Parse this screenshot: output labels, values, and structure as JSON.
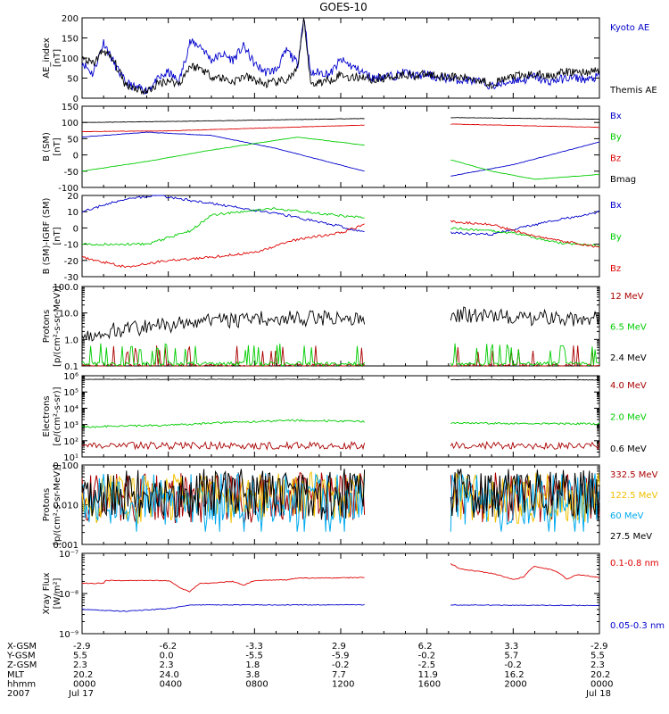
{
  "chart_data": {
    "type": "line",
    "title": "GOES-10",
    "x": {
      "ticks": [
        0,
        4,
        8,
        12,
        16,
        20,
        24
      ],
      "range": [
        0,
        24
      ],
      "data_gap": [
        13.1,
        17.1
      ]
    },
    "footer": {
      "row_labels": [
        "X-GSM",
        "Y-GSM",
        "Z-GSM",
        "MLT",
        "hhmm",
        "2007"
      ],
      "columns": [
        [
          "-2.9",
          "5.5",
          "2.3",
          "20.2",
          "0000",
          "Jul 17"
        ],
        [
          "-6.2",
          "0.0",
          "2.3",
          "24.0",
          "0400",
          ""
        ],
        [
          "-3.3",
          "-5.5",
          "1.8",
          "3.8",
          "0800",
          ""
        ],
        [
          "2.9",
          "-5.9",
          "-0.2",
          "7.7",
          "1200",
          ""
        ],
        [
          "6.2",
          "-0.2",
          "-2.5",
          "11.9",
          "1600",
          ""
        ],
        [
          "3.3",
          "5.7",
          "-0.2",
          "16.2",
          "2000",
          ""
        ],
        [
          "-2.9",
          "5.5",
          "2.3",
          "20.2",
          "0000",
          "Jul 18"
        ]
      ]
    },
    "panels": [
      {
        "ylabel": [
          "AE_index",
          "[nT]"
        ],
        "yscale": "linear",
        "ylim": [
          0,
          200
        ],
        "ticks": [
          0,
          50,
          100,
          150,
          200
        ],
        "series": [
          {
            "name": "Kyoto AE",
            "color": "#0000cc",
            "gap": false,
            "x": [
              0,
              0.5,
              1,
              1.5,
              2,
              2.5,
              3,
              3.5,
              4,
              4.5,
              5,
              5.5,
              6,
              6.5,
              7,
              7.5,
              8,
              8.5,
              9,
              9.5,
              10,
              10.3,
              10.6,
              11,
              11.5,
              12,
              12.5,
              13,
              13.5,
              14,
              14.5,
              15,
              15.5,
              16,
              16.5,
              17,
              17.5,
              18,
              18.5,
              19,
              19.5,
              20,
              20.5,
              21,
              21.5,
              22,
              22.5,
              23,
              23.5,
              24
            ],
            "y": [
              90,
              60,
              140,
              85,
              40,
              25,
              20,
              45,
              65,
              40,
              140,
              130,
              95,
              110,
              95,
              130,
              85,
              65,
              70,
              120,
              85,
              205,
              60,
              65,
              60,
              95,
              80,
              65,
              50,
              55,
              55,
              65,
              55,
              60,
              50,
              50,
              45,
              45,
              40,
              30,
              35,
              45,
              45,
              55,
              40,
              45,
              50,
              50,
              45,
              55
            ]
          },
          {
            "name": "Themis AE",
            "color": "#000000",
            "gap": false,
            "x": [
              0,
              0.5,
              1,
              1.5,
              2,
              2.5,
              3,
              3.5,
              4,
              4.5,
              5,
              5.5,
              6,
              6.5,
              7,
              7.5,
              8,
              8.5,
              9,
              9.5,
              10,
              10.3,
              10.6,
              11,
              11.5,
              12,
              12.5,
              13,
              13.5,
              14,
              14.5,
              15,
              15.5,
              16,
              16.5,
              17,
              17.5,
              18,
              18.5,
              19,
              19.5,
              20,
              20.5,
              21,
              21.5,
              22,
              22.5,
              23,
              23.5,
              24
            ],
            "y": [
              100,
              85,
              120,
              90,
              35,
              25,
              15,
              35,
              45,
              35,
              80,
              75,
              55,
              50,
              40,
              55,
              45,
              35,
              40,
              45,
              70,
              200,
              35,
              40,
              45,
              60,
              50,
              55,
              45,
              50,
              55,
              60,
              55,
              60,
              55,
              55,
              50,
              50,
              45,
              35,
              45,
              55,
              55,
              60,
              55,
              60,
              65,
              65,
              65,
              70
            ]
          }
        ]
      },
      {
        "ylabel": [
          "B (SM)",
          "[nT]"
        ],
        "yscale": "linear",
        "ylim": [
          -100,
          150
        ],
        "ticks": [
          -100,
          -50,
          0,
          50,
          100,
          150
        ],
        "series": [
          {
            "name": "Bx",
            "color": "#0000cc",
            "gap": true,
            "x": [
              0,
              3,
              6,
              9,
              13.1,
              17.1,
              20,
              24
            ],
            "y": [
              55,
              70,
              60,
              20,
              -50,
              -65,
              -30,
              40
            ]
          },
          {
            "name": "By",
            "color": "#00cc00",
            "gap": true,
            "x": [
              0,
              3,
              6,
              10,
              13.1,
              17.1,
              19,
              21,
              24
            ],
            "y": [
              -50,
              -20,
              15,
              55,
              30,
              -15,
              -50,
              -75,
              -60
            ]
          },
          {
            "name": "Bz",
            "color": "#dd0000",
            "gap": true,
            "x": [
              0,
              4,
              8,
              13.1,
              17.1,
              24
            ],
            "y": [
              72,
              74,
              82,
              92,
              95,
              85
            ]
          },
          {
            "name": "Bmag",
            "color": "#000000",
            "gap": true,
            "x": [
              0,
              4,
              8,
              13.1,
              17.1,
              24
            ],
            "y": [
              100,
              103,
              107,
              112,
              115,
              110
            ]
          }
        ]
      },
      {
        "ylabel": [
          "B (SM)-IGRF (SM)",
          "[nT]"
        ],
        "yscale": "linear",
        "ylim": [
          -30,
          20
        ],
        "ticks": [
          -30,
          -20,
          -10,
          0,
          10,
          20
        ],
        "series": [
          {
            "name": "Bx",
            "color": "#0000cc",
            "gap": true,
            "x": [
              0,
              2,
              3.5,
              6,
              9,
              12,
              13.1,
              17.1,
              19,
              21,
              24
            ],
            "y": [
              10,
              18,
              20,
              15,
              9,
              1,
              -3,
              -3,
              -4,
              2,
              10
            ]
          },
          {
            "name": "By",
            "color": "#00cc00",
            "gap": true,
            "x": [
              0,
              3,
              5,
              6,
              9,
              13.1,
              17.1,
              20,
              22,
              24
            ],
            "y": [
              -10,
              -10,
              -2,
              8,
              12,
              6,
              0,
              -3,
              -9,
              -11
            ]
          },
          {
            "name": "Bz",
            "color": "#dd0000",
            "gap": true,
            "x": [
              0,
              2,
              4,
              6,
              8,
              10,
              12,
              13.1,
              17.1,
              19,
              21,
              24
            ],
            "y": [
              -18,
              -24,
              -20,
              -18,
              -15,
              -7,
              -3,
              2,
              4,
              2,
              -5,
              -12
            ]
          }
        ]
      },
      {
        "ylabel": [
          "Protons",
          "[p/(cm²-s-sr-MeV)]"
        ],
        "yscale": "log",
        "ylim": [
          0.1,
          100
        ],
        "ticks": [
          0.1,
          1.0,
          10.0,
          100.0
        ],
        "tick_labels": [
          "0.1",
          "1.0",
          "10.0",
          "100.0"
        ],
        "series": [
          {
            "name": "12 MeV",
            "color": "#aa0000",
            "gap": true,
            "x": [
              0,
              24
            ],
            "y": [
              0.1,
              0.1
            ]
          },
          {
            "name": "6.5 MeV",
            "color": "#00cc00",
            "gap": true,
            "x": [
              0,
              24
            ],
            "y": [
              0.12,
              0.12
            ]
          },
          {
            "name": "2.4 MeV",
            "color": "#000000",
            "gap": true,
            "x": [
              0,
              2,
              4,
              6,
              8,
              10,
              13.1,
              17.1,
              20,
              24
            ],
            "y": [
              1.5,
              2.5,
              3.5,
              5,
              6,
              6,
              7,
              9,
              7,
              6
            ]
          }
        ]
      },
      {
        "ylabel": [
          "Electrons",
          "[e/(cm²-s-sr)]"
        ],
        "yscale": "log",
        "ylim": [
          10,
          1000000
        ],
        "ticks": [
          10,
          100,
          1000,
          10000,
          100000,
          1000000
        ],
        "tick_labels": [
          "10¹",
          "10²",
          "10³",
          "10⁴",
          "10⁵",
          "10⁶"
        ],
        "series": [
          {
            "name": "4.0 MeV",
            "color": "#aa0000",
            "gap": true,
            "x": [
              0,
              24
            ],
            "y": [
              50,
              50
            ]
          },
          {
            "name": "2.0 MeV",
            "color": "#00cc00",
            "gap": true,
            "x": [
              0,
              4,
              8,
              10,
              13.1,
              17.1,
              24
            ],
            "y": [
              700,
              900,
              1500,
              1800,
              1500,
              1200,
              1100
            ]
          },
          {
            "name": "0.6 MeV",
            "color": "#000000",
            "gap": true,
            "x": [
              0,
              13.1,
              17.1,
              24
            ],
            "y": [
              600000,
              600000,
              580000,
              550000
            ]
          }
        ]
      },
      {
        "ylabel": [
          "Protons",
          "[p/(cm²-s-sr-MeV)]"
        ],
        "yscale": "log",
        "ylim": [
          0.001,
          0.1
        ],
        "ticks": [
          0.001,
          0.01,
          0.1
        ],
        "tick_labels": [
          "0.001",
          "0.010",
          "0.100"
        ],
        "series": [
          {
            "name": "332.5 MeV",
            "color": "#aa0000",
            "gap": true,
            "x": [
              0,
              24
            ],
            "y": [
              0.015,
              0.015
            ]
          },
          {
            "name": "122.5 MeV",
            "color": "#f0c000",
            "gap": true,
            "x": [
              0,
              24
            ],
            "y": [
              0.015,
              0.015
            ]
          },
          {
            "name": "60 MeV",
            "color": "#00aaee",
            "gap": true,
            "x": [
              0,
              24
            ],
            "y": [
              0.014,
              0.014
            ]
          },
          {
            "name": "27.5 MeV",
            "color": "#000000",
            "gap": true,
            "x": [
              0,
              24
            ],
            "y": [
              0.018,
              0.018
            ]
          }
        ]
      },
      {
        "ylabel": [
          "Xray Flux",
          "[W/m²]"
        ],
        "yscale": "log",
        "ylim": [
          1e-09,
          1e-07
        ],
        "ticks": [
          1e-09,
          1e-08,
          1e-07
        ],
        "tick_labels": [
          "10⁻⁹",
          "10⁻⁸",
          "10⁻⁷"
        ],
        "series": [
          {
            "name": "0.1-0.8 nm",
            "color": "#dd0000",
            "gap": true,
            "x": [
              0,
              1,
              1.1,
              4,
              4.5,
              5,
              5.5,
              6,
              7,
              7.5,
              8,
              9.5,
              10,
              13.1,
              17.1,
              17.5,
              18,
              19,
              20,
              20.5,
              21,
              22,
              22.5,
              23,
              24
            ],
            "y": [
              1.8e-08,
              1.8e-08,
              2.1e-08,
              2.1e-08,
              1.4e-08,
              1.1e-08,
              1.8e-08,
              1.8e-08,
              2e-08,
              1.6e-08,
              2.1e-08,
              2.2e-08,
              2.4e-08,
              2.5e-08,
              5.5e-08,
              4.2e-08,
              3.8e-08,
              3.2e-08,
              2.2e-08,
              2.6e-08,
              4.8e-08,
              3.6e-08,
              2.2e-08,
              3e-08,
              2.5e-08
            ]
          },
          {
            "name": "0.05-0.3 nm",
            "color": "#0000cc",
            "gap": true,
            "x": [
              0,
              2,
              4,
              5,
              6,
              13.1,
              17.1,
              24
            ],
            "y": [
              4e-09,
              3.6e-09,
              4.2e-09,
              5.1e-09,
              5.2e-09,
              5.2e-09,
              5.2e-09,
              5e-09
            ]
          }
        ]
      }
    ]
  }
}
